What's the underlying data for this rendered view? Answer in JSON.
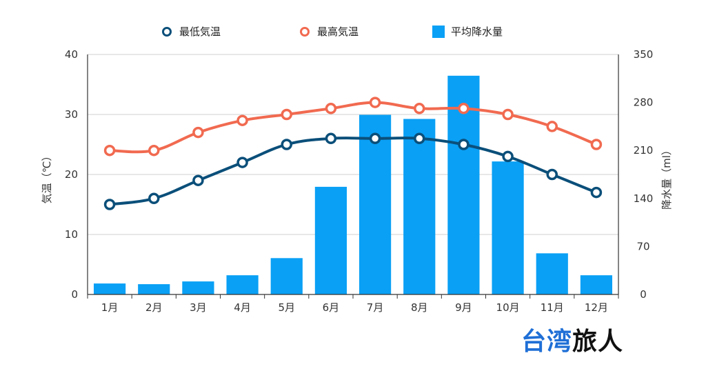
{
  "chart_data": {
    "type": "bar+line",
    "categories": [
      "1月",
      "2月",
      "3月",
      "4月",
      "5月",
      "6月",
      "7月",
      "8月",
      "9月",
      "10月",
      "11月",
      "12月"
    ],
    "series": [
      {
        "name": "最低気温",
        "type": "line",
        "axis": "left",
        "color": "#0b4f7a",
        "values": [
          15,
          16,
          19,
          22,
          25,
          26,
          26,
          26,
          25,
          23,
          20,
          17
        ]
      },
      {
        "name": "最高気温",
        "type": "line",
        "axis": "left",
        "color": "#f16a50",
        "values": [
          24,
          24,
          27,
          29,
          30,
          31,
          32,
          31,
          31,
          30,
          28,
          25
        ]
      },
      {
        "name": "平均降水量",
        "type": "bar",
        "axis": "right",
        "color": "#0aa0f5",
        "values": [
          16,
          15,
          19,
          28,
          53,
          157,
          262,
          256,
          319,
          194,
          60,
          28
        ]
      }
    ],
    "ylabel_left": "気温（℃）",
    "ylabel_right": "降水量（ml）",
    "ylim_left": [
      0,
      40
    ],
    "ylim_right": [
      0,
      350
    ],
    "yticks_left": [
      "0",
      "10",
      "20",
      "30",
      "40"
    ],
    "yticks_right": [
      "0",
      "70",
      "140",
      "210",
      "280",
      "350"
    ],
    "legend_position": "top",
    "grid": true
  },
  "watermark": {
    "blue_text": "台湾",
    "black_text": "旅人"
  }
}
